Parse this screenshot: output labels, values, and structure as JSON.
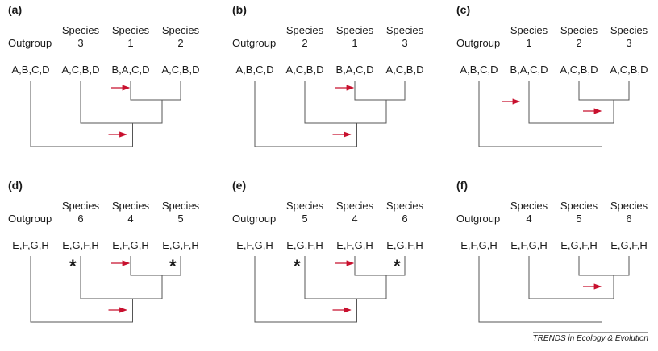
{
  "panels": [
    {
      "label": "(a)",
      "outgroup_label": "Outgroup",
      "outgroup_order": "A,B,C,D",
      "species": [
        {
          "word": "Species",
          "num": "3",
          "order": "A,C,B,D"
        },
        {
          "word": "Species",
          "num": "1",
          "order": "B,A,C,D"
        },
        {
          "word": "Species",
          "num": "2",
          "order": "A,C,B,D"
        }
      ],
      "topology": "A",
      "arrows": [
        "s2",
        "s1"
      ],
      "asterisks": []
    },
    {
      "label": "(b)",
      "outgroup_label": "Outgroup",
      "outgroup_order": "A,B,C,D",
      "species": [
        {
          "word": "Species",
          "num": "2",
          "order": "A,C,B,D"
        },
        {
          "word": "Species",
          "num": "1",
          "order": "B,A,C,D"
        },
        {
          "word": "Species",
          "num": "3",
          "order": "A,C,B,D"
        }
      ],
      "topology": "A",
      "arrows": [
        "s2",
        "s1"
      ],
      "asterisks": []
    },
    {
      "label": "(c)",
      "outgroup_label": "Outgroup",
      "outgroup_order": "A,B,C,D",
      "species": [
        {
          "word": "Species",
          "num": "1",
          "order": "B,A,C,D"
        },
        {
          "word": "Species",
          "num": "2",
          "order": "A,C,B,D"
        },
        {
          "word": "Species",
          "num": "3",
          "order": "A,C,B,D"
        }
      ],
      "topology": "B",
      "arrows": [
        "s1",
        "c23"
      ],
      "asterisks": []
    },
    {
      "label": "(d)",
      "outgroup_label": "Outgroup",
      "outgroup_order": "E,F,G,H",
      "species": [
        {
          "word": "Species",
          "num": "6",
          "order": "E,G,F,H"
        },
        {
          "word": "Species",
          "num": "4",
          "order": "E,F,G,H"
        },
        {
          "word": "Species",
          "num": "5",
          "order": "E,G,F,H"
        }
      ],
      "topology": "A",
      "arrows": [
        "s2",
        "s1"
      ],
      "asterisks": [
        "s1",
        "s3"
      ],
      "asterisk_glyph": "*"
    },
    {
      "label": "(e)",
      "outgroup_label": "Outgroup",
      "outgroup_order": "E,F,G,H",
      "species": [
        {
          "word": "Species",
          "num": "5",
          "order": "E,G,F,H"
        },
        {
          "word": "Species",
          "num": "4",
          "order": "E,F,G,H"
        },
        {
          "word": "Species",
          "num": "6",
          "order": "E,G,F,H"
        }
      ],
      "topology": "A",
      "arrows": [
        "s2",
        "s1"
      ],
      "asterisks": [
        "s1",
        "s3"
      ],
      "asterisk_glyph": "*"
    },
    {
      "label": "(f)",
      "outgroup_label": "Outgroup",
      "outgroup_order": "E,F,G,H",
      "species": [
        {
          "word": "Species",
          "num": "4",
          "order": "E,F,G,H"
        },
        {
          "word": "Species",
          "num": "5",
          "order": "E,G,F,H"
        },
        {
          "word": "Species",
          "num": "6",
          "order": "E,G,F,H"
        }
      ],
      "topology": "B",
      "arrows": [
        "c23"
      ],
      "asterisks": []
    }
  ],
  "footer": "TRENDS in Ecology & Evolution",
  "colors": {
    "line": "#555555",
    "arrow": "#c8102e",
    "text": "#1a1a1a"
  }
}
